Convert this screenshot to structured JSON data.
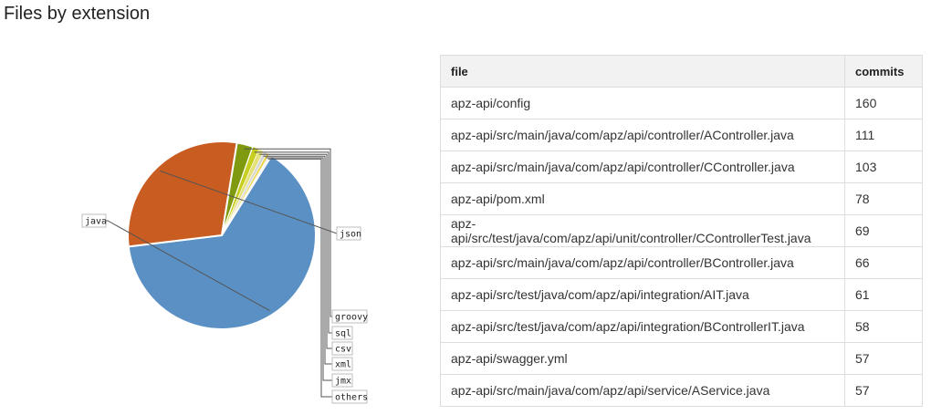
{
  "page": {
    "title": "Files by extension"
  },
  "table": {
    "headers": {
      "file": "file",
      "commits": "commits"
    },
    "rows": [
      {
        "file": "apz-api/config",
        "commits": "160"
      },
      {
        "file": "apz-api/src/main/java/com/apz/api/controller/AController.java",
        "commits": "111"
      },
      {
        "file": "apz-api/src/main/java/com/apz/api/controller/CController.java",
        "commits": "103"
      },
      {
        "file": "apz-api/pom.xml",
        "commits": "78"
      },
      {
        "file": "apz-api/src/test/java/com/apz/api/unit/controller/CControllerTest.java",
        "commits": "69"
      },
      {
        "file": "apz-api/src/main/java/com/apz/api/controller/BController.java",
        "commits": "66"
      },
      {
        "file": "apz-api/src/test/java/com/apz/api/integration/AIT.java",
        "commits": "61"
      },
      {
        "file": "apz-api/src/test/java/com/apz/api/integration/BControllerIT.java",
        "commits": "58"
      },
      {
        "file": "apz-api/swagger.yml",
        "commits": "57"
      },
      {
        "file": "apz-api/src/main/java/com/apz/api/service/AService.java",
        "commits": "57"
      }
    ]
  },
  "chart_data": {
    "type": "pie",
    "labels": [
      "java",
      "json",
      "groovy",
      "sql",
      "csv",
      "xml",
      "jmx",
      "others"
    ],
    "values": [
      64.2,
      29.5,
      2.8,
      1.1,
      0.9,
      0.6,
      0.5,
      0.4
    ],
    "colors": [
      "#5a90c4",
      "#c95c21",
      "#7f9a0f",
      "#c6cf1f",
      "#e4e07a",
      "#d6d6d6",
      "#ead64a",
      "#f2f2f2"
    ],
    "start_angle_deg": 32,
    "direction": "clockwise",
    "legend": "none"
  }
}
